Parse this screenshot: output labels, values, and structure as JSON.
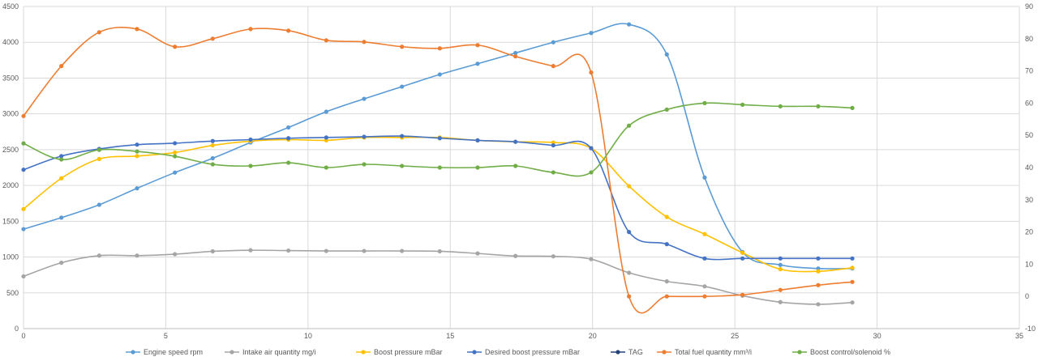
{
  "chart_data": {
    "type": "line",
    "title": "",
    "xlabel": "",
    "ylabel": "",
    "xlim": [
      0,
      35
    ],
    "ylim_left": [
      0,
      4500
    ],
    "ylim_right": [
      -10,
      90
    ],
    "x_ticks": [
      0,
      5,
      10,
      15,
      20,
      25,
      30,
      35
    ],
    "y_left_ticks": [
      0,
      500,
      1000,
      1500,
      2000,
      2500,
      3000,
      3500,
      4000,
      4500
    ],
    "y_right_ticks": [
      -10,
      0,
      10,
      20,
      30,
      40,
      50,
      60,
      70,
      80,
      90
    ],
    "grid": true,
    "smooth": true,
    "legend_position": "bottom",
    "series": [
      {
        "name": "Engine speed rpm",
        "axis": "left",
        "color": "#5B9BD5",
        "x": [
          0,
          1.33,
          2.66,
          3.99,
          5.32,
          6.65,
          7.98,
          9.31,
          10.64,
          11.97,
          13.3,
          14.63,
          15.96,
          17.29,
          18.62,
          19.95,
          21.28,
          22.61,
          23.94,
          25.27,
          26.6,
          27.93,
          29.13
        ],
        "values": [
          1390,
          1550,
          1730,
          1960,
          2180,
          2380,
          2600,
          2810,
          3030,
          3210,
          3380,
          3550,
          3700,
          3850,
          4000,
          4130,
          4250,
          3830,
          2110,
          1070,
          890,
          840,
          840
        ]
      },
      {
        "name": "Intake air quantity mg/i",
        "axis": "left",
        "color": "#A5A5A5",
        "x": [
          0,
          1.33,
          2.66,
          3.99,
          5.32,
          6.65,
          7.98,
          9.31,
          10.64,
          11.97,
          13.3,
          14.63,
          15.96,
          17.29,
          18.62,
          19.95,
          21.28,
          22.61,
          23.94,
          25.27,
          26.6,
          27.93,
          29.13
        ],
        "values": [
          730,
          920,
          1020,
          1020,
          1040,
          1080,
          1095,
          1090,
          1085,
          1085,
          1085,
          1080,
          1050,
          1015,
          1010,
          970,
          780,
          660,
          590,
          460,
          370,
          340,
          365
        ]
      },
      {
        "name": "Boost pressure mBar",
        "axis": "left",
        "color": "#FFC000",
        "x": [
          0,
          1.33,
          2.66,
          3.99,
          5.32,
          6.65,
          7.98,
          9.31,
          10.64,
          11.97,
          13.3,
          14.63,
          15.96,
          17.29,
          18.62,
          19.95,
          21.28,
          22.61,
          23.94,
          25.27,
          26.6,
          27.93,
          29.13
        ],
        "values": [
          1670,
          2100,
          2370,
          2410,
          2460,
          2560,
          2620,
          2640,
          2630,
          2670,
          2670,
          2670,
          2630,
          2610,
          2600,
          2520,
          1990,
          1560,
          1320,
          1060,
          830,
          800,
          850
        ]
      },
      {
        "name": "Desired boost pressure mBar",
        "axis": "left",
        "color": "#4472C4",
        "x": [
          0,
          1.33,
          2.66,
          3.99,
          5.32,
          6.65,
          7.98,
          9.31,
          10.64,
          11.97,
          13.3,
          14.63,
          15.96,
          17.29,
          18.62,
          19.95,
          21.28,
          22.61,
          23.94,
          25.27,
          26.6,
          27.93,
          29.13
        ],
        "values": [
          2220,
          2410,
          2510,
          2570,
          2590,
          2620,
          2640,
          2660,
          2670,
          2680,
          2690,
          2660,
          2630,
          2610,
          2560,
          2520,
          1350,
          1180,
          980,
          980,
          980,
          980,
          980
        ]
      },
      {
        "name": "TAG",
        "axis": "left",
        "color": "#264478",
        "x": [],
        "values": []
      },
      {
        "name": "Total fuel quantity mm³/i",
        "axis": "right",
        "color": "#ED7D31",
        "x": [
          0,
          1.33,
          2.66,
          3.99,
          5.32,
          6.65,
          7.98,
          9.31,
          10.64,
          11.97,
          13.3,
          14.63,
          15.96,
          17.29,
          18.62,
          19.95,
          21.28,
          22.61,
          23.94,
          25.27,
          26.6,
          27.93,
          29.13
        ],
        "values": [
          56,
          71.5,
          82,
          83,
          77.5,
          80,
          83,
          82.5,
          79.5,
          79,
          77.5,
          77,
          78,
          74.5,
          71.5,
          69.5,
          0,
          0,
          0,
          0.5,
          2,
          3.5,
          4.5
        ]
      },
      {
        "name": "Boost control/solenoid %",
        "axis": "right",
        "color": "#70AD47",
        "x": [
          0,
          1.33,
          2.66,
          3.99,
          5.32,
          6.65,
          7.98,
          9.31,
          10.64,
          11.97,
          13.3,
          14.63,
          15.96,
          17.29,
          18.62,
          19.95,
          21.28,
          22.61,
          23.94,
          25.27,
          26.6,
          27.93,
          29.13
        ],
        "values": [
          47.5,
          42.5,
          45.5,
          45,
          43.5,
          41,
          40.5,
          41.5,
          40,
          41,
          40.5,
          40,
          40,
          40.5,
          38.5,
          38.5,
          53,
          58,
          60,
          59.5,
          59,
          59,
          58.5
        ]
      }
    ]
  }
}
